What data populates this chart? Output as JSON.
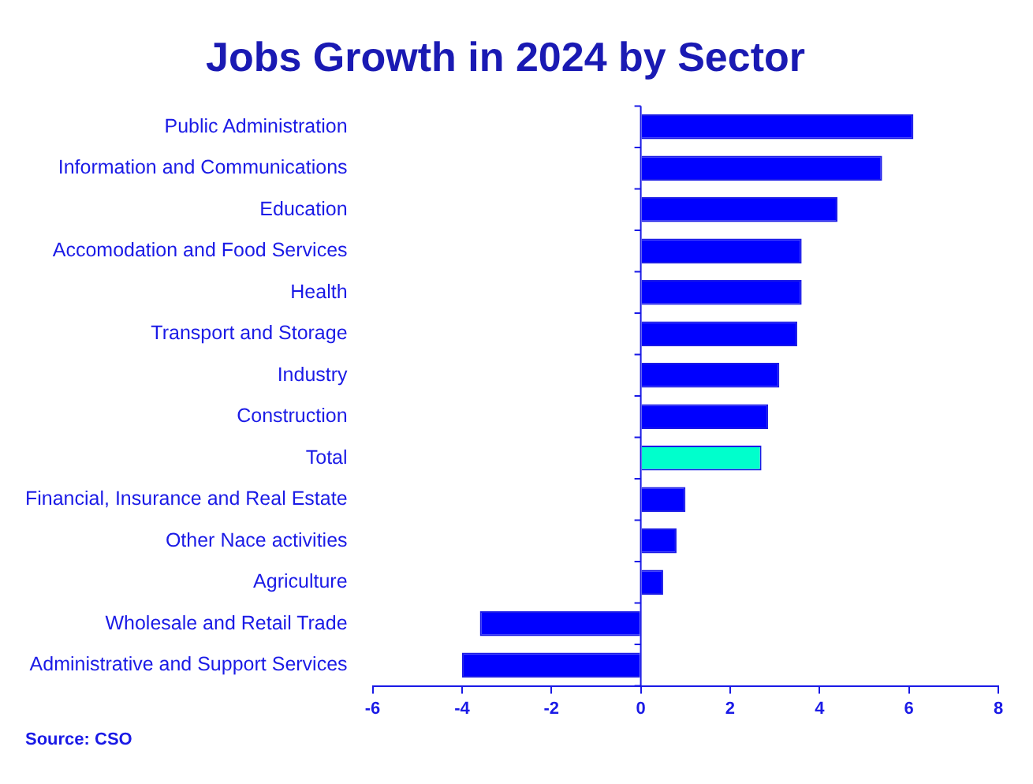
{
  "chart_data": {
    "type": "bar",
    "orientation": "horizontal",
    "title": "Jobs Growth in 2024 by Sector",
    "categories": [
      "Public Administration",
      "Information and Communications",
      "Education",
      "Accomodation and Food Services",
      "Health",
      "Transport and Storage",
      "Industry",
      "Construction",
      "Total",
      "Financial, Insurance and Real Estate",
      "Other Nace activities",
      "Agriculture",
      "Wholesale and Retail Trade",
      "Administrative and Support Services"
    ],
    "values": [
      6.1,
      5.4,
      4.4,
      3.6,
      3.6,
      3.5,
      3.1,
      2.85,
      2.7,
      1.0,
      0.8,
      0.5,
      -3.6,
      -4.0
    ],
    "colors": [
      "#0000ff",
      "#0000ff",
      "#0000ff",
      "#0000ff",
      "#0000ff",
      "#0000ff",
      "#0000ff",
      "#0000ff",
      "#00ffcc",
      "#0000ff",
      "#0000ff",
      "#0000ff",
      "#0000ff",
      "#0000ff"
    ],
    "xlim": [
      -6,
      8
    ],
    "xticks": [
      -6,
      -4,
      -2,
      0,
      2,
      4,
      6,
      8
    ],
    "grid": false,
    "legend": false,
    "ref_lines": [
      {
        "axis": "x",
        "value": 0,
        "color": "#1a1ae6"
      }
    ],
    "annotations": [
      "Source: CSO"
    ]
  }
}
